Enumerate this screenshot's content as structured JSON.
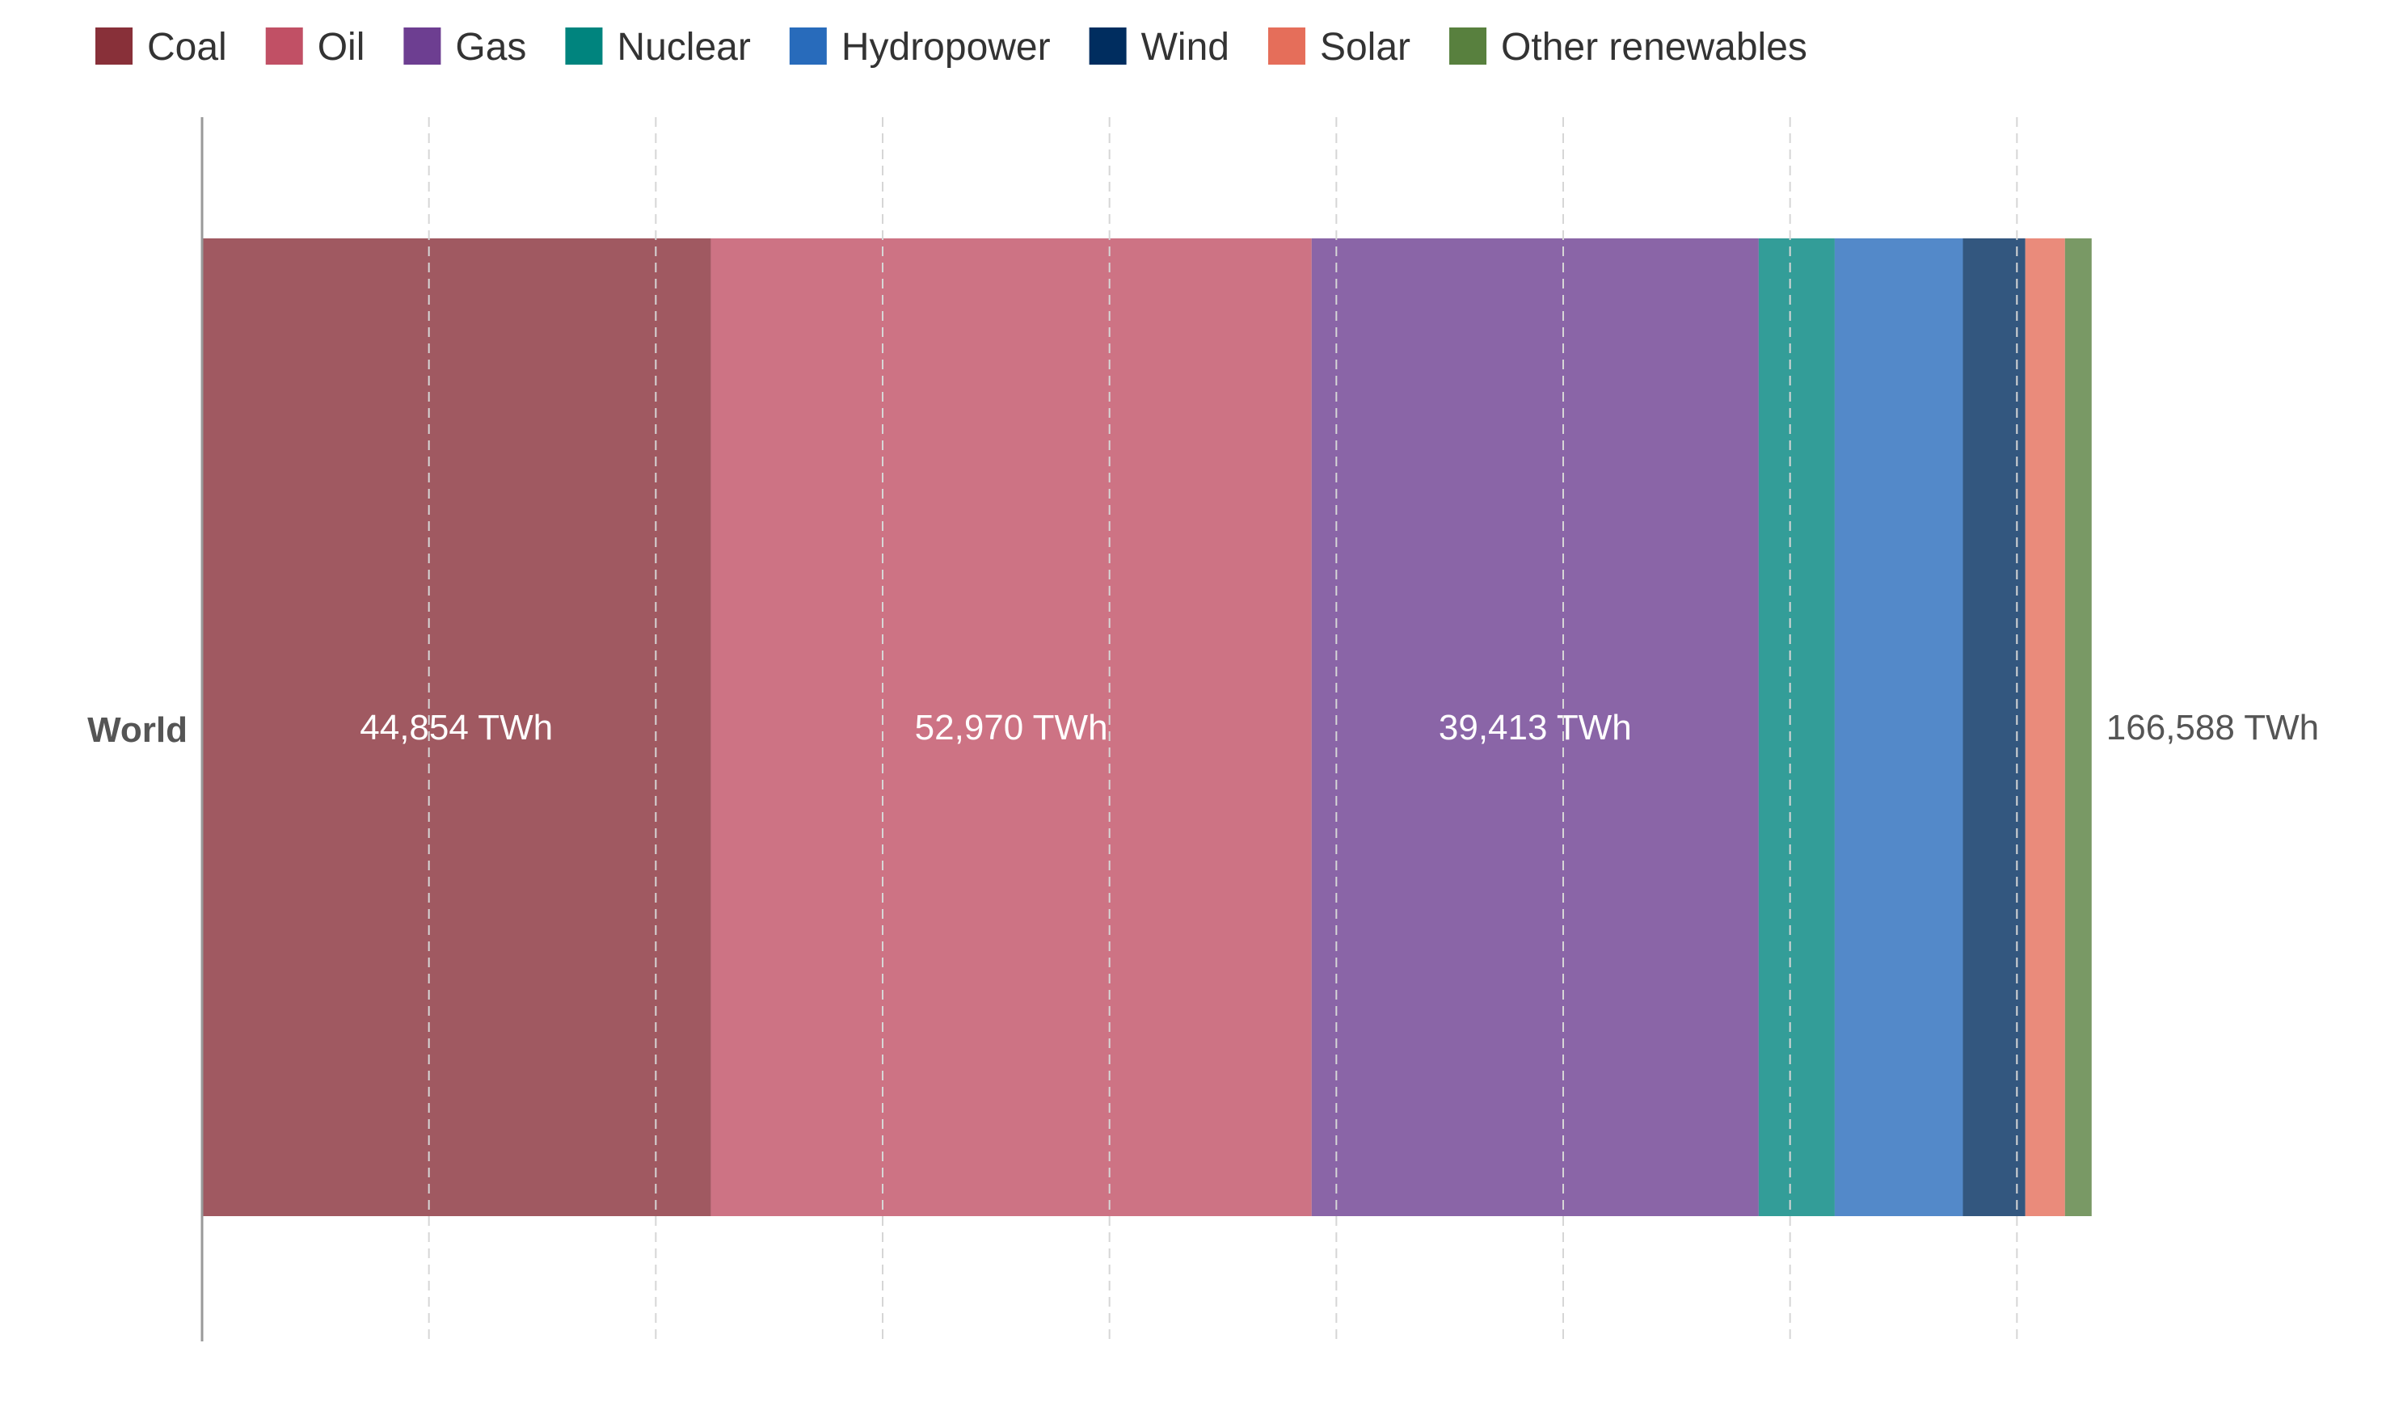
{
  "chart_data": {
    "type": "bar",
    "orientation": "horizontal",
    "stacked": true,
    "categories": [
      "World"
    ],
    "series": [
      {
        "name": "Coal",
        "values": [
          44854
        ],
        "color": "#883039",
        "label": "44,854 TWh"
      },
      {
        "name": "Oil",
        "values": [
          52970
        ],
        "color": "#c15065",
        "label": "52,970 TWh"
      },
      {
        "name": "Gas",
        "values": [
          39413
        ],
        "color": "#6d3e91",
        "label": "39,413 TWh"
      },
      {
        "name": "Nuclear",
        "values": [
          6700
        ],
        "color": "#00847e",
        "label": ""
      },
      {
        "name": "Hydropower",
        "values": [
          11300
        ],
        "color": "#286bbb",
        "label": ""
      },
      {
        "name": "Wind",
        "values": [
          5500
        ],
        "color": "#002d5f",
        "label": ""
      },
      {
        "name": "Solar",
        "values": [
          3500
        ],
        "color": "#e56e5a",
        "label": ""
      },
      {
        "name": "Other renewables",
        "values": [
          2351
        ],
        "color": "#58803e",
        "label": ""
      }
    ],
    "total_label": "166,588 TWh",
    "xlim": [
      0,
      180000
    ],
    "grid": true,
    "legend": "top-left",
    "title": "",
    "xlabel": "",
    "ylabel": ""
  }
}
